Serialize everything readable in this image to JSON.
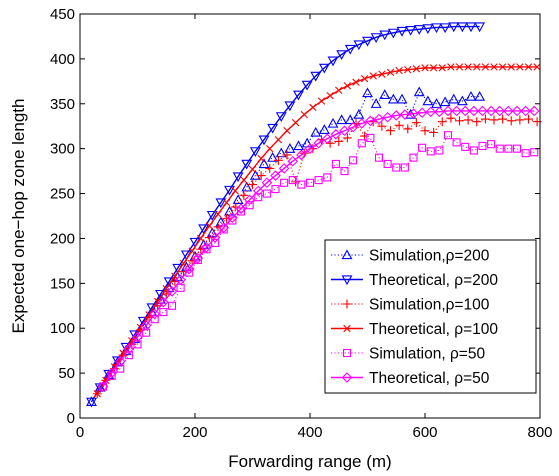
{
  "chart_data": {
    "type": "line",
    "xlabel": "Forwarding range (m)",
    "ylabel": "Expected one−hop zone length",
    "xlim": [
      0,
      800
    ],
    "ylim": [
      0,
      450
    ],
    "xticks": [
      0,
      200,
      400,
      600,
      800
    ],
    "yticks": [
      0,
      50,
      100,
      150,
      200,
      250,
      300,
      350,
      400,
      450
    ],
    "grid": false,
    "legend_position": "bottom-right",
    "series": [
      {
        "name": "Simulation,ρ=200",
        "color": "#0000ff",
        "marker": "triangle-up",
        "line": "dotted",
        "points": [
          [
            20,
            18
          ],
          [
            35,
            34
          ],
          [
            50,
            48
          ],
          [
            65,
            62
          ],
          [
            80,
            75
          ],
          [
            95,
            88
          ],
          [
            110,
            103
          ],
          [
            125,
            118
          ],
          [
            140,
            132
          ],
          [
            155,
            145
          ],
          [
            170,
            157
          ],
          [
            185,
            168
          ],
          [
            200,
            180
          ],
          [
            215,
            193
          ],
          [
            230,
            206
          ],
          [
            245,
            218
          ],
          [
            260,
            230
          ],
          [
            275,
            243
          ],
          [
            290,
            257
          ],
          [
            305,
            270
          ],
          [
            320,
            283
          ],
          [
            335,
            290
          ],
          [
            350,
            295
          ],
          [
            365,
            300
          ],
          [
            380,
            303
          ],
          [
            395,
            306
          ],
          [
            410,
            318
          ],
          [
            425,
            321
          ],
          [
            440,
            328
          ],
          [
            455,
            332
          ],
          [
            470,
            332
          ],
          [
            485,
            338
          ],
          [
            500,
            362
          ],
          [
            515,
            350
          ],
          [
            530,
            360
          ],
          [
            545,
            355
          ],
          [
            560,
            355
          ],
          [
            575,
            338
          ],
          [
            590,
            363
          ],
          [
            605,
            353
          ],
          [
            620,
            350
          ],
          [
            635,
            352
          ],
          [
            650,
            355
          ],
          [
            665,
            353
          ],
          [
            680,
            358
          ],
          [
            695,
            358
          ]
        ]
      },
      {
        "name": "Theoretical, ρ=200",
        "color": "#0000ff",
        "marker": "triangle-down",
        "line": "solid",
        "points": [
          [
            20,
            18
          ],
          [
            35,
            34
          ],
          [
            50,
            49
          ],
          [
            65,
            64
          ],
          [
            80,
            79
          ],
          [
            95,
            93
          ],
          [
            110,
            108
          ],
          [
            125,
            123
          ],
          [
            140,
            138
          ],
          [
            155,
            152
          ],
          [
            170,
            167
          ],
          [
            185,
            182
          ],
          [
            200,
            196
          ],
          [
            215,
            211
          ],
          [
            230,
            226
          ],
          [
            245,
            240
          ],
          [
            260,
            254
          ],
          [
            275,
            269
          ],
          [
            290,
            283
          ],
          [
            305,
            297
          ],
          [
            320,
            310
          ],
          [
            335,
            323
          ],
          [
            350,
            336
          ],
          [
            365,
            348
          ],
          [
            380,
            360
          ],
          [
            395,
            371
          ],
          [
            410,
            381
          ],
          [
            425,
            390
          ],
          [
            440,
            398
          ],
          [
            455,
            405
          ],
          [
            470,
            411
          ],
          [
            485,
            416
          ],
          [
            500,
            420
          ],
          [
            515,
            424
          ],
          [
            530,
            427
          ],
          [
            545,
            429
          ],
          [
            560,
            431
          ],
          [
            575,
            432
          ],
          [
            590,
            433
          ],
          [
            605,
            434
          ],
          [
            620,
            435
          ],
          [
            635,
            435
          ],
          [
            650,
            436
          ],
          [
            665,
            436
          ],
          [
            680,
            436
          ],
          [
            695,
            436
          ]
        ]
      },
      {
        "name": "Simulation,ρ=100",
        "color": "#ff0000",
        "marker": "plus",
        "line": "dotted",
        "points": [
          [
            30,
            27
          ],
          [
            45,
            42
          ],
          [
            60,
            55
          ],
          [
            75,
            70
          ],
          [
            90,
            82
          ],
          [
            105,
            98
          ],
          [
            120,
            112
          ],
          [
            135,
            125
          ],
          [
            150,
            138
          ],
          [
            165,
            152
          ],
          [
            180,
            163
          ],
          [
            195,
            175
          ],
          [
            210,
            188
          ],
          [
            225,
            201
          ],
          [
            240,
            213
          ],
          [
            255,
            222
          ],
          [
            270,
            235
          ],
          [
            285,
            248
          ],
          [
            300,
            260
          ],
          [
            315,
            270
          ],
          [
            330,
            278
          ],
          [
            345,
            287
          ],
          [
            360,
            293
          ],
          [
            375,
            263
          ],
          [
            390,
            295
          ],
          [
            405,
            300
          ],
          [
            420,
            310
          ],
          [
            435,
            306
          ],
          [
            450,
            308
          ],
          [
            465,
            312
          ],
          [
            480,
            328
          ],
          [
            495,
            314
          ],
          [
            510,
            330
          ],
          [
            525,
            325
          ],
          [
            540,
            320
          ],
          [
            555,
            326
          ],
          [
            570,
            322
          ],
          [
            585,
            329
          ],
          [
            600,
            320
          ],
          [
            615,
            318
          ],
          [
            630,
            330
          ],
          [
            645,
            334
          ],
          [
            660,
            331
          ],
          [
            675,
            332
          ],
          [
            690,
            330
          ],
          [
            705,
            333
          ],
          [
            720,
            332
          ],
          [
            735,
            333
          ],
          [
            750,
            331
          ],
          [
            765,
            332
          ],
          [
            780,
            333
          ],
          [
            795,
            330
          ]
        ]
      },
      {
        "name": "Theoretical, ρ=100",
        "color": "#ff0000",
        "marker": "x",
        "line": "solid",
        "points": [
          [
            30,
            27
          ],
          [
            45,
            42
          ],
          [
            60,
            57
          ],
          [
            75,
            72
          ],
          [
            90,
            86
          ],
          [
            105,
            101
          ],
          [
            120,
            115
          ],
          [
            135,
            130
          ],
          [
            150,
            144
          ],
          [
            165,
            158
          ],
          [
            180,
            172
          ],
          [
            195,
            186
          ],
          [
            210,
            200
          ],
          [
            225,
            214
          ],
          [
            240,
            227
          ],
          [
            255,
            240
          ],
          [
            270,
            253
          ],
          [
            285,
            265
          ],
          [
            300,
            277
          ],
          [
            315,
            289
          ],
          [
            330,
            300
          ],
          [
            345,
            310
          ],
          [
            360,
            320
          ],
          [
            375,
            329
          ],
          [
            390,
            338
          ],
          [
            405,
            346
          ],
          [
            420,
            353
          ],
          [
            435,
            359
          ],
          [
            450,
            365
          ],
          [
            465,
            370
          ],
          [
            480,
            374
          ],
          [
            495,
            378
          ],
          [
            510,
            381
          ],
          [
            525,
            383
          ],
          [
            540,
            385
          ],
          [
            555,
            387
          ],
          [
            570,
            388
          ],
          [
            585,
            389
          ],
          [
            600,
            390
          ],
          [
            615,
            390
          ],
          [
            630,
            390
          ],
          [
            645,
            391
          ],
          [
            660,
            391
          ],
          [
            675,
            391
          ],
          [
            690,
            391
          ],
          [
            705,
            391
          ],
          [
            720,
            391
          ],
          [
            735,
            391
          ],
          [
            750,
            391
          ],
          [
            765,
            391
          ],
          [
            780,
            391
          ],
          [
            795,
            391
          ]
        ]
      },
      {
        "name": "Simulation, ρ=50",
        "color": "#ff00ff",
        "marker": "square",
        "line": "dotted",
        "points": [
          [
            40,
            35
          ],
          [
            55,
            47
          ],
          [
            70,
            55
          ],
          [
            85,
            70
          ],
          [
            100,
            82
          ],
          [
            115,
            95
          ],
          [
            130,
            110
          ],
          [
            145,
            118
          ],
          [
            160,
            125
          ],
          [
            175,
            145
          ],
          [
            190,
            162
          ],
          [
            205,
            176
          ],
          [
            220,
            188
          ],
          [
            235,
            195
          ],
          [
            250,
            210
          ],
          [
            265,
            220
          ],
          [
            280,
            230
          ],
          [
            295,
            237
          ],
          [
            310,
            246
          ],
          [
            325,
            250
          ],
          [
            340,
            255
          ],
          [
            355,
            262
          ],
          [
            370,
            265
          ],
          [
            385,
            260
          ],
          [
            400,
            262
          ],
          [
            415,
            265
          ],
          [
            430,
            268
          ],
          [
            445,
            283
          ],
          [
            460,
            275
          ],
          [
            475,
            287
          ],
          [
            490,
            306
          ],
          [
            505,
            312
          ],
          [
            520,
            290
          ],
          [
            535,
            283
          ],
          [
            550,
            279
          ],
          [
            565,
            279
          ],
          [
            580,
            290
          ],
          [
            595,
            301
          ],
          [
            610,
            297
          ],
          [
            625,
            298
          ],
          [
            640,
            315
          ],
          [
            655,
            307
          ],
          [
            670,
            302
          ],
          [
            685,
            298
          ],
          [
            700,
            303
          ],
          [
            715,
            305
          ],
          [
            730,
            300
          ],
          [
            745,
            300
          ],
          [
            760,
            300
          ],
          [
            775,
            295
          ],
          [
            790,
            296
          ]
        ]
      },
      {
        "name": "Theoretical, ρ=50",
        "color": "#ff00ff",
        "marker": "diamond",
        "line": "solid",
        "points": [
          [
            40,
            35
          ],
          [
            55,
            50
          ],
          [
            70,
            63
          ],
          [
            85,
            77
          ],
          [
            100,
            90
          ],
          [
            115,
            103
          ],
          [
            130,
            116
          ],
          [
            145,
            129
          ],
          [
            160,
            141
          ],
          [
            175,
            154
          ],
          [
            190,
            166
          ],
          [
            205,
            178
          ],
          [
            220,
            190
          ],
          [
            235,
            201
          ],
          [
            250,
            212
          ],
          [
            265,
            223
          ],
          [
            280,
            233
          ],
          [
            295,
            243
          ],
          [
            310,
            253
          ],
          [
            325,
            262
          ],
          [
            340,
            270
          ],
          [
            355,
            278
          ],
          [
            370,
            286
          ],
          [
            385,
            293
          ],
          [
            400,
            300
          ],
          [
            415,
            306
          ],
          [
            430,
            311
          ],
          [
            445,
            316
          ],
          [
            460,
            320
          ],
          [
            475,
            324
          ],
          [
            490,
            328
          ],
          [
            505,
            331
          ],
          [
            520,
            333
          ],
          [
            535,
            335
          ],
          [
            550,
            337
          ],
          [
            565,
            338
          ],
          [
            580,
            339
          ],
          [
            595,
            340
          ],
          [
            610,
            341
          ],
          [
            625,
            341
          ],
          [
            640,
            342
          ],
          [
            655,
            342
          ],
          [
            670,
            342
          ],
          [
            685,
            342
          ],
          [
            700,
            342
          ],
          [
            715,
            342
          ],
          [
            730,
            342
          ],
          [
            745,
            342
          ],
          [
            760,
            342
          ],
          [
            775,
            342
          ],
          [
            790,
            342
          ]
        ]
      }
    ]
  }
}
